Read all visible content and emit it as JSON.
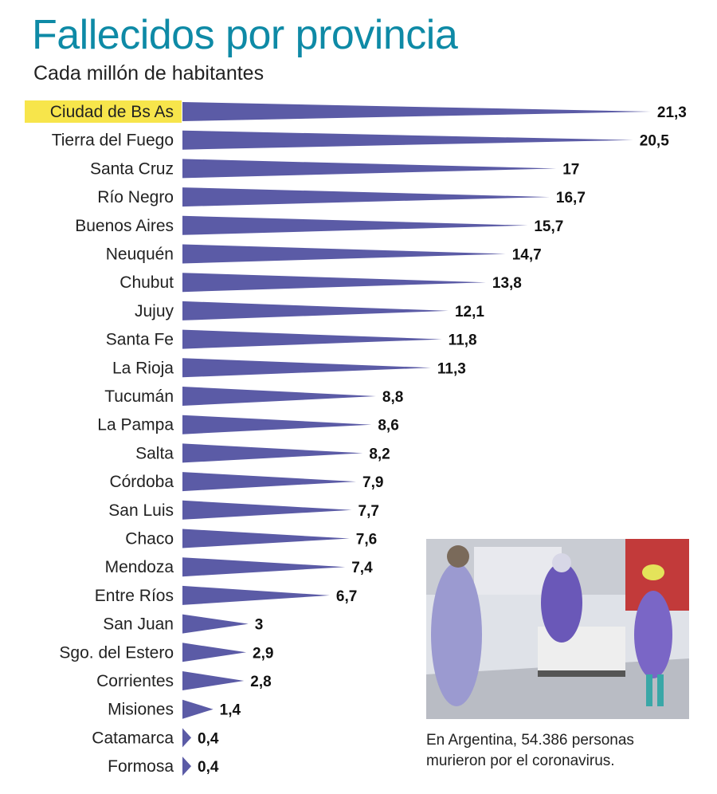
{
  "header": {
    "title": "Fallecidos por provincia",
    "subtitle": "Cada millón de habitantes"
  },
  "colors": {
    "bar": "#5b5ba6",
    "highlight": "#f7e54b",
    "title": "#0e8aa6"
  },
  "chart_data": {
    "type": "bar",
    "orientation": "horizontal",
    "title": "Fallecidos por provincia",
    "subtitle": "Cada millón de habitantes",
    "highlighted_category": "Ciudad de Bs As",
    "categories": [
      "Ciudad de Bs As",
      "Tierra del Fuego",
      "Santa Cruz",
      "Río Negro",
      "Buenos Aires",
      "Neuquén",
      "Chubut",
      "Jujuy",
      "Santa Fe",
      "La Rioja",
      "Tucumán",
      "La Pampa",
      "Salta",
      "Córdoba",
      "San Luis",
      "Chaco",
      "Mendoza",
      "Entre Ríos",
      "San Juan",
      "Sgo. del Estero",
      "Corrientes",
      "Misiones",
      "Catamarca",
      "Formosa"
    ],
    "values": [
      21.3,
      20.5,
      17,
      16.7,
      15.7,
      14.7,
      13.8,
      12.1,
      11.8,
      11.3,
      8.8,
      8.6,
      8.2,
      7.9,
      7.7,
      7.6,
      7.4,
      6.7,
      3,
      2.9,
      2.8,
      1.4,
      0.4,
      0.4
    ],
    "value_labels": [
      "21,3",
      "20,5",
      "17",
      "16,7",
      "15,7",
      "14,7",
      "13,8",
      "12,1",
      "11,8",
      "11,3",
      "8,8",
      "8,6",
      "8,2",
      "7,9",
      "7,7",
      "7,6",
      "7,4",
      "6,7",
      "3",
      "2,9",
      "2,8",
      "1,4",
      "0,4",
      "0,4"
    ]
  },
  "photo": {
    "caption": "En Argentina, 54.386 personas murieron por el coronavirus."
  }
}
